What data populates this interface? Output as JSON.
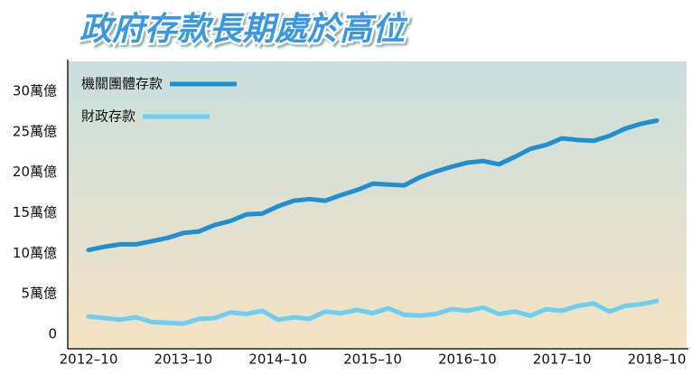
{
  "chart_data": {
    "type": "line",
    "title": "政府存款長期處於高位",
    "categories": [
      "2012–10",
      null,
      null,
      null,
      null,
      null,
      "2013–10",
      null,
      null,
      null,
      null,
      null,
      "2014–10",
      null,
      null,
      null,
      null,
      null,
      "2015–10",
      null,
      null,
      null,
      null,
      null,
      "2016–10",
      null,
      null,
      null,
      null,
      null,
      "2017–10",
      null,
      null,
      null,
      null,
      null,
      "2018–10"
    ],
    "series": [
      {
        "name": "機關團體存款",
        "color": "#1f8fd2",
        "values": [
          10.4,
          10.8,
          11.1,
          11.1,
          11.5,
          11.9,
          12.5,
          12.7,
          13.5,
          14.0,
          14.8,
          14.9,
          15.8,
          16.5,
          16.7,
          16.5,
          17.2,
          17.8,
          18.6,
          18.5,
          18.4,
          19.4,
          20.1,
          20.7,
          21.2,
          21.4,
          21.0,
          21.9,
          22.9,
          23.4,
          24.2,
          24.0,
          23.9,
          24.5,
          25.4,
          26.0,
          26.4
        ]
      },
      {
        "name": "財政存款",
        "color": "#6dcdf2",
        "values": [
          2.2,
          2.0,
          1.8,
          2.1,
          1.5,
          1.4,
          1.3,
          1.9,
          2.0,
          2.7,
          2.5,
          2.9,
          1.8,
          2.1,
          1.9,
          2.8,
          2.6,
          3.0,
          2.6,
          3.2,
          2.4,
          2.3,
          2.5,
          3.1,
          2.9,
          3.3,
          2.5,
          2.8,
          2.3,
          3.1,
          2.9,
          3.5,
          3.8,
          2.8,
          3.5,
          3.7,
          4.1
        ]
      }
    ],
    "ylim": [
      -1.8,
      33.7
    ],
    "yticks": [
      0,
      {
        "value": 5,
        "label": "5萬億"
      },
      {
        "value": 10,
        "label": "10萬億"
      },
      {
        "value": 15,
        "label": "15萬億"
      },
      {
        "value": 20,
        "label": "20萬億"
      },
      {
        "value": 25,
        "label": "25萬億"
      },
      {
        "value": 30,
        "label": "30萬億"
      }
    ],
    "grid": false
  }
}
